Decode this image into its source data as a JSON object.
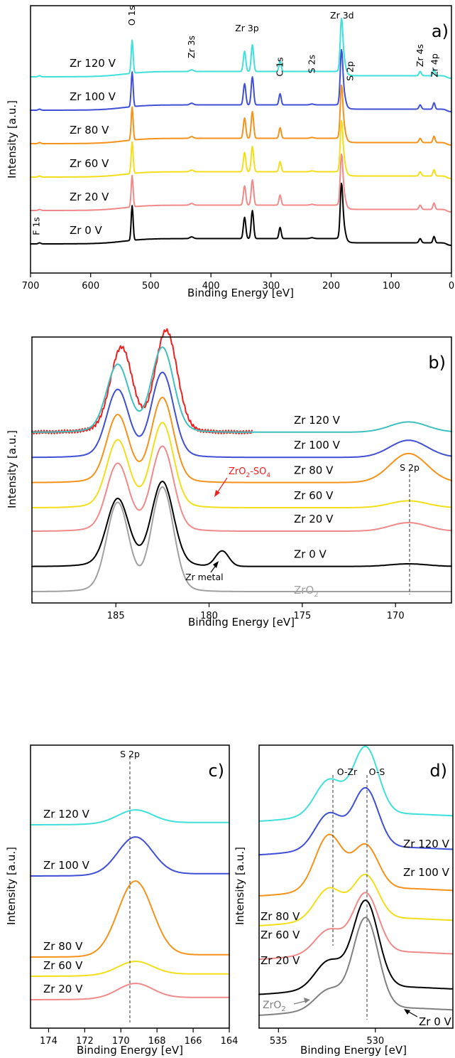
{
  "chart_data": [
    {
      "id": "a",
      "type": "line",
      "panel_label": "a)",
      "xlabel": "Binding Energy [eV]",
      "ylabel": "Intensity [a.u.]",
      "xlim": [
        700,
        0
      ],
      "xticks": [
        700,
        600,
        500,
        400,
        300,
        200,
        100,
        0
      ],
      "colors": {
        "Zr 0 V": "#000000",
        "Zr 20 V": "#f08a8a",
        "Zr 60 V": "#f2de1a",
        "Zr 80 V": "#f5921b",
        "Zr 100 V": "#3f4fd6",
        "Zr 120 V": "#3fe0db"
      },
      "series": [
        {
          "name": "Zr 120 V",
          "offset": 5.0,
          "peakscale": 1.0
        },
        {
          "name": "Zr 100 V",
          "offset": 4.0,
          "peakscale": 1.05
        },
        {
          "name": "Zr 80 V",
          "offset": 3.0,
          "peakscale": 1.0
        },
        {
          "name": "Zr 60 V",
          "offset": 2.0,
          "peakscale": 0.95
        },
        {
          "name": "Zr 20 V",
          "offset": 1.0,
          "peakscale": 0.95
        },
        {
          "name": "Zr 0 V",
          "offset": 0.0,
          "peakscale": 1.05
        }
      ],
      "annotations": [
        {
          "text": "F 1s",
          "x": 685
        },
        {
          "text": "O 1s",
          "x": 531
        },
        {
          "text": "Zr 3s",
          "x": 432
        },
        {
          "text": "Zr 3p",
          "x": 340
        },
        {
          "text": "C 1s",
          "x": 285
        },
        {
          "text": "S 2s",
          "x": 232
        },
        {
          "text": "Zr 3d",
          "x": 182
        },
        {
          "text": "S 2p",
          "x": 168
        },
        {
          "text": "Zr 4s",
          "x": 52
        },
        {
          "text": "Zr 4p",
          "x": 28
        }
      ]
    },
    {
      "id": "b",
      "type": "line",
      "panel_label": "b)",
      "xlabel": "Binding Energy [eV]",
      "ylabel": "Intensity [a.u.]",
      "xlim": [
        189.5,
        167
      ],
      "xticks": [
        185,
        180,
        175,
        170
      ],
      "colors": {
        "ZrO2": "#a0a0a0",
        "Zr 0 V": "#000000",
        "Zr 20 V": "#f08a8a",
        "Zr 60 V": "#f2de1a",
        "Zr 80 V": "#f5921b",
        "Zr 100 V": "#3f4fd6",
        "Zr 120 V": "#3fbfbf",
        "ZrO2-SO4": "#ee2020"
      },
      "series": [
        {
          "name": "ZrO2-SO4",
          "offset": 1.9,
          "s2p": 0.0,
          "metal": 0.0
        },
        {
          "name": "Zr 120 V",
          "offset": 1.9,
          "s2p": 0.12,
          "metal": 0.0
        },
        {
          "name": "Zr 100 V",
          "offset": 1.6,
          "s2p": 0.2,
          "metal": 0.0
        },
        {
          "name": "Zr 80 V",
          "offset": 1.3,
          "s2p": 0.34,
          "metal": 0.0
        },
        {
          "name": "Zr 60 V",
          "offset": 1.0,
          "s2p": 0.08,
          "metal": 0.0
        },
        {
          "name": "Zr 20 V",
          "offset": 0.72,
          "s2p": 0.1,
          "metal": 0.0
        },
        {
          "name": "Zr 0 V",
          "offset": 0.3,
          "s2p": 0.03,
          "metal": 0.18
        },
        {
          "name": "ZrO2",
          "offset": 0.0,
          "s2p": 0.0,
          "metal": 0.0
        }
      ],
      "annotations": [
        {
          "text": "S 2p",
          "x": 169.3
        },
        {
          "text": "Zr metal",
          "x": 179.3
        }
      ],
      "legend": {
        "zro2_main": "ZrO",
        "zro2_sub": "2",
        "sulf_main": "ZrO",
        "sulf_sub": "2",
        "sulf_tail": "-SO",
        "sulf_sub2": "4"
      }
    },
    {
      "id": "c",
      "type": "line",
      "panel_label": "c)",
      "xlabel": "Binding Energy [eV]",
      "ylabel": "Intensity [a.u.]",
      "xlim": [
        175,
        164
      ],
      "xticks": [
        174,
        172,
        170,
        168,
        166,
        164
      ],
      "colors": {
        "Zr 20 V": "#f08a8a",
        "Zr 60 V": "#f2de1a",
        "Zr 80 V": "#f5921b",
        "Zr 100 V": "#3f4fd6",
        "Zr 120 V": "#3fe0db"
      },
      "series": [
        {
          "name": "Zr 120 V",
          "offset": 4.1,
          "amp": 0.45
        },
        {
          "name": "Zr 100 V",
          "offset": 2.9,
          "amp": 1.3
        },
        {
          "name": "Zr 80 V",
          "offset": 1.0,
          "amp": 2.6
        },
        {
          "name": "Zr 60 V",
          "offset": 0.55,
          "amp": 0.45
        },
        {
          "name": "Zr 20 V",
          "offset": 0.0,
          "amp": 0.5
        }
      ],
      "annotations": [
        {
          "text": "S 2p",
          "x": 169.5
        }
      ]
    },
    {
      "id": "d",
      "type": "line",
      "panel_label": "d)",
      "xlabel": "Binding Energy [eV]",
      "ylabel": "Intensity [a.u.]",
      "xlim": [
        536,
        526
      ],
      "xticks": [
        535,
        530
      ],
      "colors": {
        "ZrO2": "#808080",
        "Zr 0 V": "#000000",
        "Zr 20 V": "#f08a8a",
        "Zr 60 V": "#f2de1a",
        "Zr 80 V": "#f5921b",
        "Zr 100 V": "#3f4fd6",
        "Zr 120 V": "#3fe0db"
      },
      "series": [
        {
          "name": "Zr 120 V",
          "offset": 2.6,
          "ozr": 0.45,
          "os": 0.85
        },
        {
          "name": "Zr 100 V",
          "offset": 2.15,
          "ozr": 0.45,
          "os": 0.75
        },
        {
          "name": "Zr 80 V",
          "offset": 1.6,
          "ozr": 0.7,
          "os": 0.55
        },
        {
          "name": "Zr 60 V",
          "offset": 1.2,
          "ozr": 0.4,
          "os": 0.55
        },
        {
          "name": "Zr 20 V",
          "offset": 0.75,
          "ozr": 0.3,
          "os": 0.75
        },
        {
          "name": "Zr 0 V",
          "offset": 0.28,
          "ozr": 0.35,
          "os": 1.1
        },
        {
          "name": "ZrO2",
          "offset": 0.0,
          "ozr": 0.25,
          "os": 1.15
        }
      ],
      "annotations": [
        {
          "text": "O-Zr",
          "x": 532.3
        },
        {
          "text": "O-S",
          "x": 530.5
        }
      ],
      "legend": {
        "zro2_main": "ZrO",
        "zro2_sub": "2"
      }
    }
  ]
}
